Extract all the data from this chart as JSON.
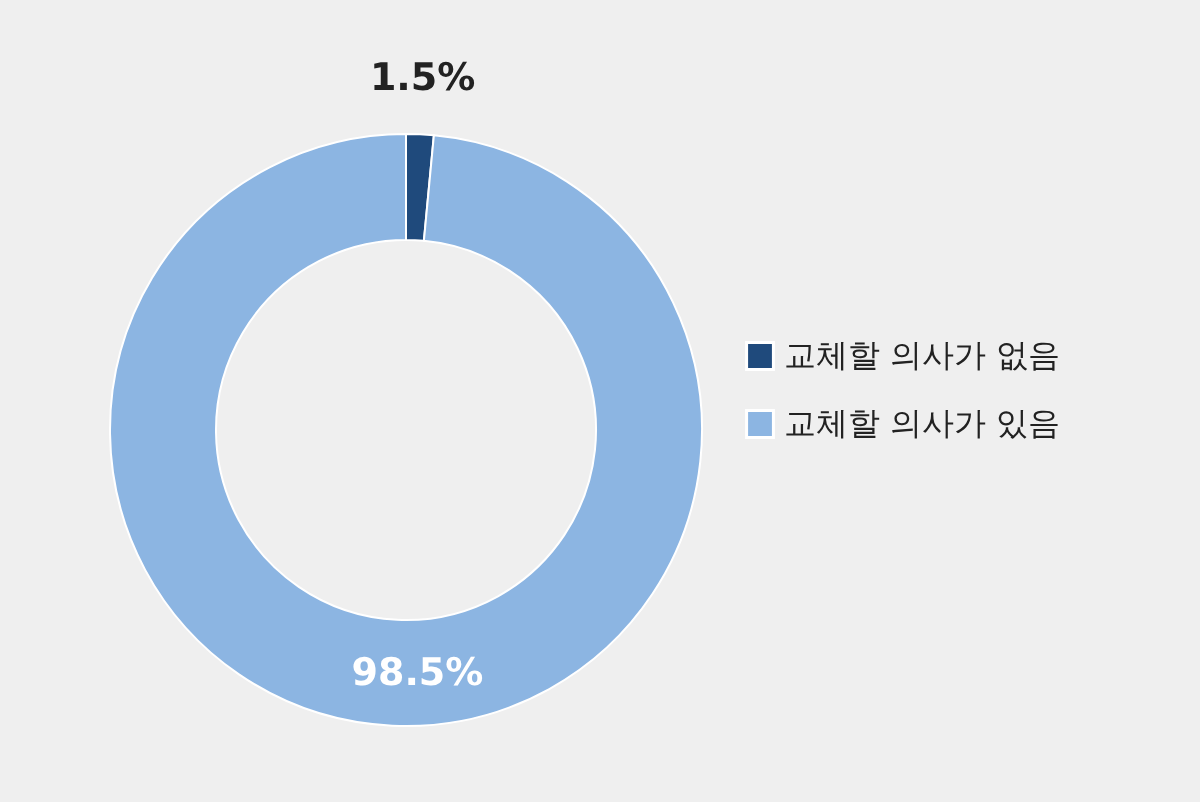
{
  "chart_data": {
    "type": "donut",
    "categories": [
      "교체할 의사가 없음",
      "교체할 의사가 있음"
    ],
    "values": [
      1.5,
      98.5
    ],
    "colors": [
      "#1f4a7c",
      "#8cb5e2"
    ],
    "value_labels": [
      "1.5%",
      "98.5%"
    ],
    "legend": "right"
  }
}
